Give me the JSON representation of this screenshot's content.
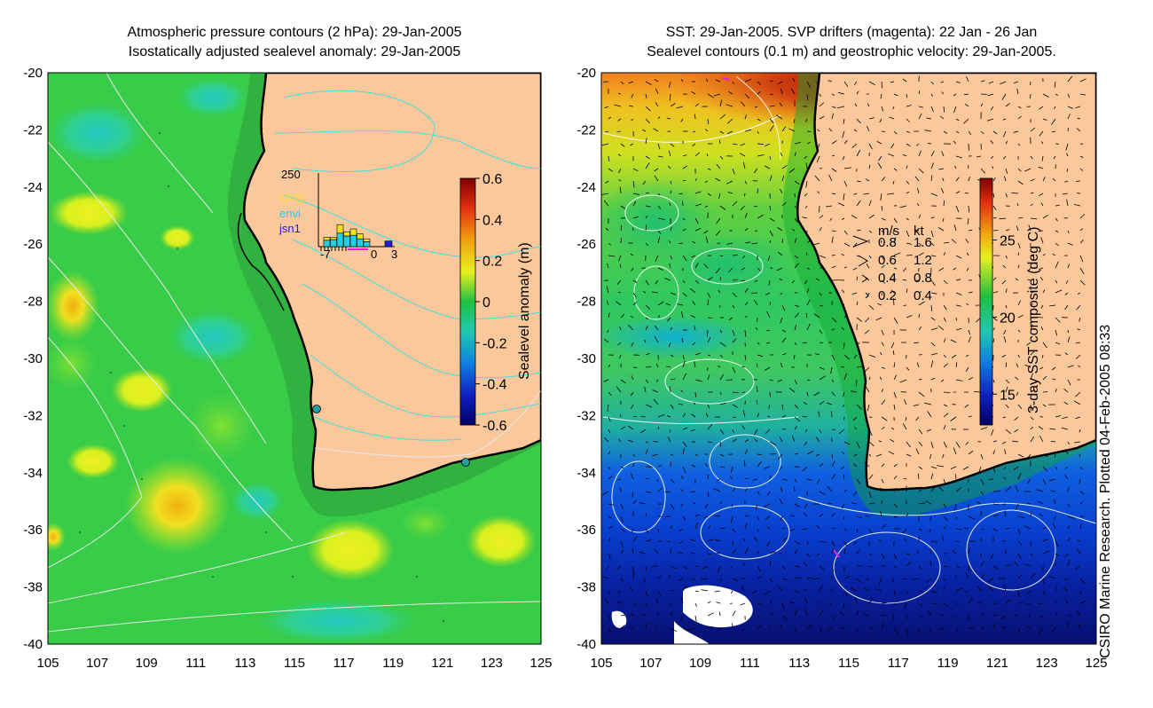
{
  "left_panel": {
    "title_line1": "Atmospheric pressure contours (2 hPa): 29-Jan-2005",
    "title_line2": "Isostatically adjusted sealevel anomaly: 29-Jan-2005",
    "y_ticks": [
      "-20",
      "-22",
      "-24",
      "-26",
      "-28",
      "-30",
      "-32",
      "-34",
      "-36",
      "-38",
      "-40"
    ],
    "x_ticks": [
      "105",
      "107",
      "109",
      "111",
      "113",
      "115",
      "117",
      "119",
      "121",
      "123",
      "125"
    ],
    "colorbar": {
      "label": "Sealevel anomaly (m)",
      "ticks": [
        "0.6",
        "0.4",
        "0.2",
        "0",
        "-0.2",
        "-0.4",
        "-0.6"
      ],
      "range": [
        -0.6,
        0.6
      ]
    },
    "inset": {
      "y_top_label": "250",
      "legend": [
        "GFO",
        "envi",
        "jsn1"
      ],
      "legend_colors": [
        "#f0e020",
        "#20d0e0",
        "#2020d0"
      ],
      "x_labels": [
        "-7",
        "0",
        "3"
      ],
      "bars_envi": [
        45,
        50,
        95,
        75,
        80,
        55,
        35
      ],
      "bars_gfo": [
        20,
        15,
        60,
        30,
        45,
        35,
        20
      ],
      "bar_jsn1": 40
    },
    "tide_gauges": [
      {
        "lon": 115.9,
        "lat": -31.8
      },
      {
        "lon": 122.0,
        "lat": -33.6
      }
    ]
  },
  "right_panel": {
    "title_line1": "SST: 29-Jan-2005. SVP drifters (magenta): 22 Jan - 26 Jan",
    "title_line2": "Sealevel contours (0.1 m) and geostrophic velocity: 29-Jan-2005.",
    "y_ticks": [
      "-20",
      "-22",
      "-24",
      "-26",
      "-28",
      "-30",
      "-32",
      "-34",
      "-36",
      "-38",
      "-40"
    ],
    "x_ticks": [
      "105",
      "107",
      "109",
      "111",
      "113",
      "115",
      "117",
      "119",
      "121",
      "123",
      "125"
    ],
    "colorbar": {
      "label": "3-day SST composite (deg C)",
      "ticks": [
        "25",
        "20",
        "15"
      ],
      "range": [
        13,
        29
      ]
    },
    "velocity_legend": {
      "header_ms": "m/s",
      "header_kt": "kt",
      "rows": [
        {
          "ms": "0.8",
          "kt": "1.6"
        },
        {
          "ms": "0.6",
          "kt": "1.2"
        },
        {
          "ms": "0.4",
          "kt": "0.8"
        },
        {
          "ms": "0.2",
          "kt": "0.4"
        }
      ]
    }
  },
  "credit": "CSIRO Marine Research. Plotted 04-Feb-2005 08:33",
  "colors": {
    "land": "#fbc89c",
    "coast": "#000000",
    "cyan_contour": "#40e0e0"
  }
}
